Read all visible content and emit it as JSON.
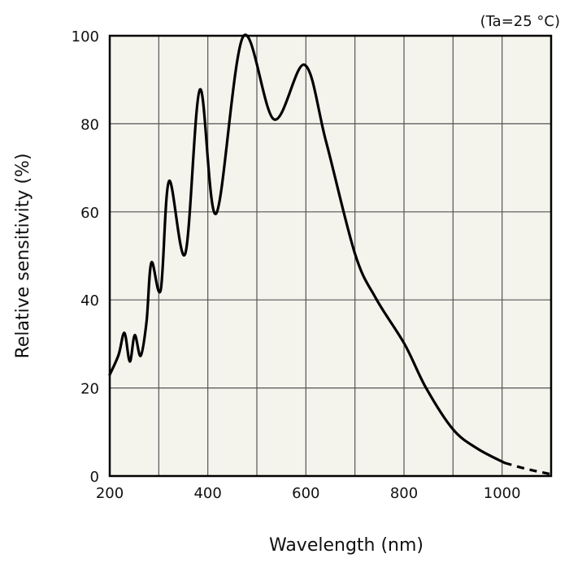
{
  "chart_data": {
    "type": "line",
    "annotation": "(Ta=25 °C)",
    "xlabel": "Wavelength (nm)",
    "ylabel": "Relative sensitivity (%)",
    "xlim": [
      200,
      1100
    ],
    "ylim": [
      0,
      100
    ],
    "xticks": [
      200,
      400,
      600,
      800,
      1000
    ],
    "yticks": [
      0,
      20,
      40,
      60,
      80,
      100
    ],
    "grid": true,
    "x_grid_step": 100,
    "y_grid_step": 20,
    "plot_background": "#f4f3ec",
    "line_color": "#000000",
    "series": [
      {
        "solid": {
          "x": [
            200,
            218,
            230,
            241,
            251,
            263,
            275,
            285,
            304,
            321,
            354,
            384,
            417,
            472,
            535,
            597,
            641,
            700,
            743,
            801,
            845,
            900,
            950,
            1005
          ],
          "y": [
            23,
            27.5,
            32.5,
            26,
            32,
            27.3,
            35,
            48.5,
            42.3,
            67,
            50.5,
            87.8,
            59.6,
            99.8,
            81,
            93.4,
            76,
            50.5,
            40.3,
            30,
            20,
            10.6,
            6.2,
            3.0
          ]
        },
        "dashed": {
          "x": [
            1005,
            1050,
            1100
          ],
          "y": [
            3.0,
            1.6,
            0.4
          ]
        }
      }
    ]
  }
}
